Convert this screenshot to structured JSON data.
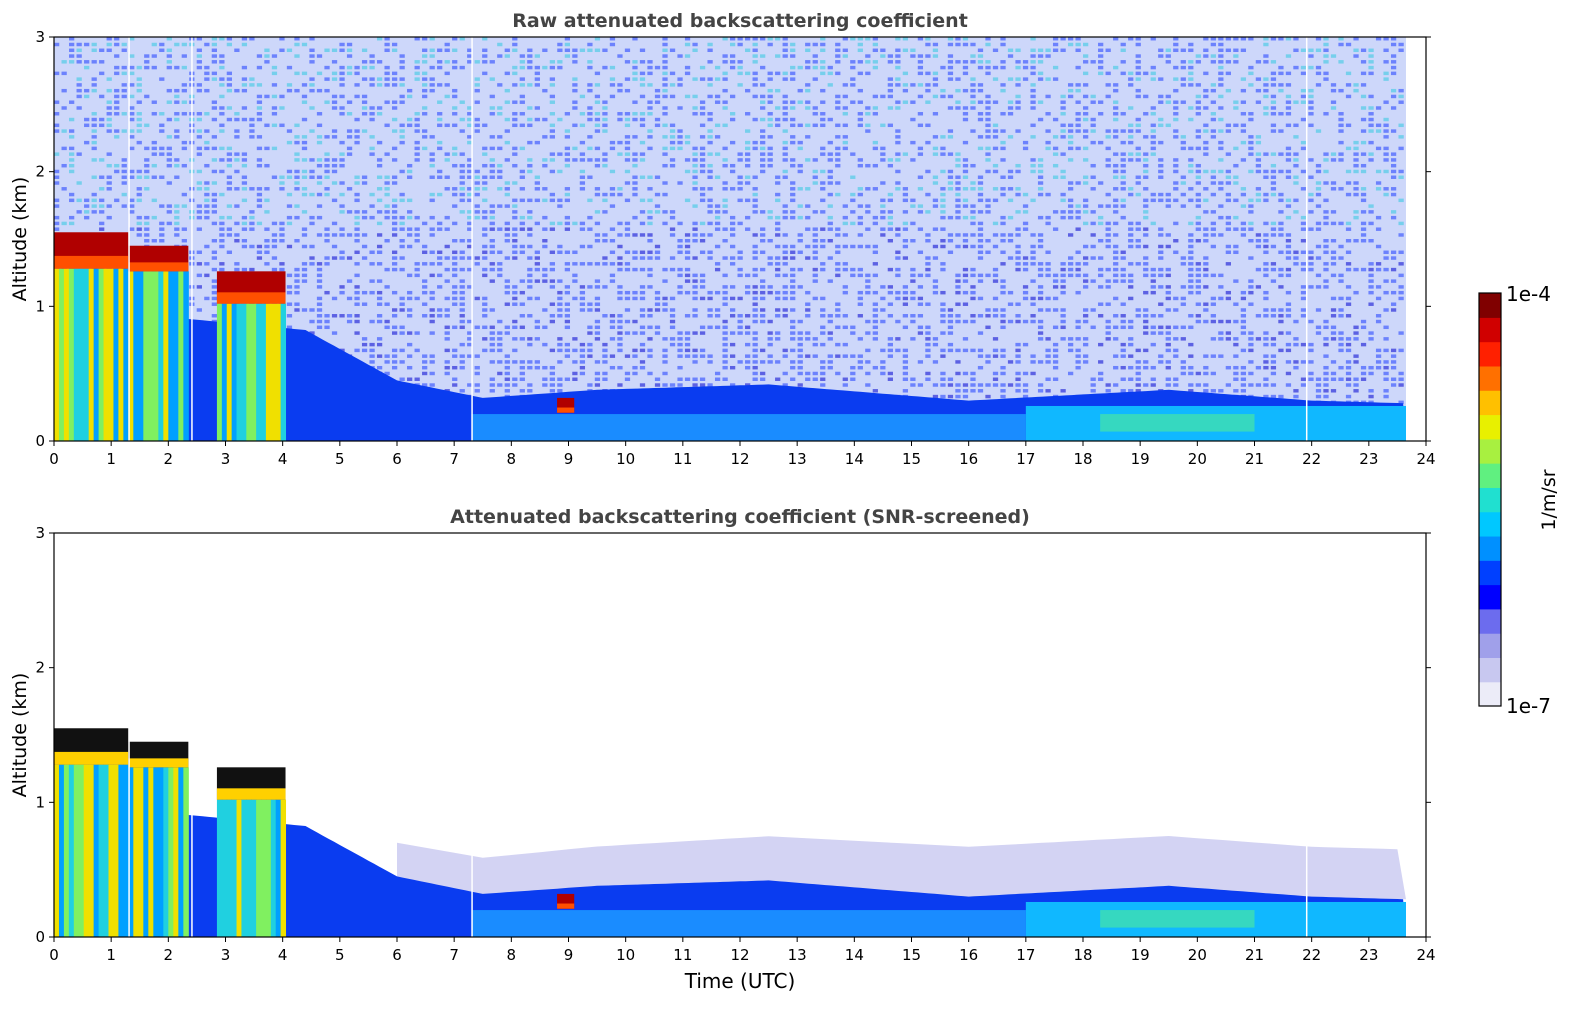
{
  "chart_data": [
    {
      "type": "heatmap",
      "title": "Raw attenuated backscattering coefficient",
      "xlabel": "",
      "ylabel": "Altitude (km)",
      "xlim": [
        0,
        24
      ],
      "ylim": [
        0,
        3
      ],
      "x_ticks": [
        "0",
        "1",
        "2",
        "3",
        "4",
        "5",
        "6",
        "7",
        "8",
        "9",
        "10",
        "11",
        "12",
        "13",
        "14",
        "15",
        "16",
        "17",
        "18",
        "19",
        "20",
        "21",
        "22",
        "23",
        "24"
      ],
      "y_ticks": [
        "0",
        "1",
        "2",
        "3"
      ],
      "data_end_hour": 23.65,
      "cloud_layers": [
        {
          "start": 0.0,
          "end": 1.3,
          "base_km": 1.28,
          "top_km": 1.55
        },
        {
          "start": 1.3,
          "end": 2.35,
          "base_km": 1.26,
          "top_km": 1.45
        },
        {
          "start": 2.85,
          "end": 4.05,
          "base_km": 1.02,
          "top_km": 1.26
        },
        {
          "start": 8.8,
          "end": 9.1,
          "base_km": 0.21,
          "top_km": 0.32
        }
      ],
      "boundary_layer_top_km": [
        {
          "hour": 4.5,
          "km": 0.8
        },
        {
          "hour": 6.0,
          "km": 0.45
        },
        {
          "hour": 7.5,
          "km": 0.32
        },
        {
          "hour": 9.5,
          "km": 0.38
        },
        {
          "hour": 12.5,
          "km": 0.42
        },
        {
          "hour": 16.0,
          "km": 0.3
        },
        {
          "hour": 19.5,
          "km": 0.38
        },
        {
          "hour": 22.0,
          "km": 0.3
        },
        {
          "hour": 23.65,
          "km": 0.28
        }
      ]
    },
    {
      "type": "heatmap",
      "title": "Attenuated backscattering coefficient (SNR-screened)",
      "xlabel": "Time (UTC)",
      "ylabel": "Altitude (km)",
      "xlim": [
        0,
        24
      ],
      "ylim": [
        0,
        3
      ],
      "x_ticks": [
        "0",
        "1",
        "2",
        "3",
        "4",
        "5",
        "6",
        "7",
        "8",
        "9",
        "10",
        "11",
        "12",
        "13",
        "14",
        "15",
        "16",
        "17",
        "18",
        "19",
        "20",
        "21",
        "22",
        "23",
        "24"
      ],
      "y_ticks": [
        "0",
        "1",
        "2",
        "3"
      ],
      "data_end_hour": 23.65
    }
  ],
  "colorbar": {
    "label": "1/m/sr",
    "max_label": "1e-4",
    "min_label": "1e-7",
    "colors": [
      "#ececf8",
      "#c8c8f0",
      "#a0a0ea",
      "#6c6cee",
      "#0000ff",
      "#0040ff",
      "#0090ff",
      "#00c8ff",
      "#20e0d0",
      "#60f080",
      "#a8f040",
      "#e8f000",
      "#ffc000",
      "#ff7000",
      "#ff2000",
      "#d00000",
      "#800000"
    ]
  }
}
